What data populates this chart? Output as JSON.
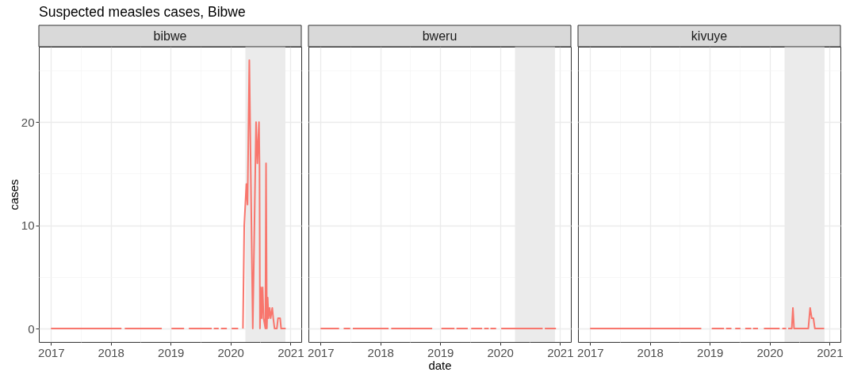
{
  "chart_data": [
    {
      "type": "line",
      "title": "Suspected measles cases, Bibwe",
      "subtitle": "bibwe",
      "ylabel": "cases",
      "x": [
        "2017-01-01",
        "2018-03-07",
        "2018-03-17",
        "2018-03-27",
        "2018-11-08",
        "2018-12-07",
        "2019-01-06",
        "2019-03-24",
        "2019-04-07",
        "2019-04-22",
        "2019-09-09",
        "2019-09-15",
        "2019-09-21",
        "2019-10-21",
        "2019-10-28",
        "2019-11-04",
        "2019-12-10",
        "2019-12-25",
        "2020-01-08",
        "2020-02-17",
        "2020-03-02",
        "2020-03-17",
        "2020-03-25",
        "2020-04-07",
        "2020-04-14",
        "2020-04-25",
        "2020-05-16",
        "2020-06-05",
        "2020-06-13",
        "2020-06-23",
        "2020-06-26",
        "2020-06-29",
        "2020-07-04",
        "2020-07-09",
        "2020-07-15",
        "2020-07-21",
        "2020-08-01",
        "2020-08-05",
        "2020-08-10",
        "2020-08-15",
        "2020-08-20",
        "2020-08-27",
        "2020-09-02",
        "2020-09-12",
        "2020-09-18",
        "2020-09-26",
        "2020-10-10",
        "2020-10-17",
        "2020-10-30",
        "2020-11-05",
        "2020-12-03"
      ],
      "series": [
        {
          "color": "#f8766d",
          "values": [
            0,
            0,
            null,
            0,
            0,
            null,
            0,
            0,
            null,
            0,
            0,
            null,
            0,
            0,
            null,
            0,
            0,
            null,
            0,
            0,
            null,
            0,
            10,
            14,
            12,
            26,
            0,
            20,
            16,
            20,
            16,
            0,
            4,
            1,
            4,
            1,
            0,
            16,
            0,
            3,
            1,
            2,
            1,
            2,
            1,
            0,
            0,
            1,
            1,
            0,
            0
          ]
        }
      ],
      "xlim": [
        "2016-10-19",
        "2021-03-08"
      ],
      "xticks": [
        "2017",
        {
          "value": "2017-07-01",
          "label": null
        },
        "2018",
        {
          "value": "2018-07-01",
          "label": null
        },
        "2019",
        {
          "value": "2019-07-01",
          "label": null
        },
        "2020",
        {
          "value": "2020-07-01",
          "label": null
        },
        "2021"
      ],
      "ylim": [
        -1.3,
        27.3
      ],
      "yticks": [
        0,
        {
          "value": 5,
          "label": null
        },
        10,
        {
          "value": 15,
          "label": null
        },
        20,
        {
          "value": 25,
          "label": null
        }
      ],
      "grid": true,
      "bands": [
        {
          "axis": "x",
          "from": "2020-04-01",
          "to": "2020-12-01",
          "color": "#ebebeb"
        }
      ]
    },
    {
      "type": "line",
      "subtitle": "bweru",
      "xlabel": "date",
      "x": [
        "2017-01-01",
        "2017-04-24",
        "2017-05-08",
        "2017-05-22",
        "2017-07-01",
        "2017-07-09",
        "2017-07-17",
        "2018-02-20",
        "2018-02-28",
        "2018-03-08",
        "2018-11-13",
        "2018-12-10",
        "2019-01-08",
        "2019-03-29",
        "2019-04-04",
        "2019-04-10",
        "2019-06-18",
        "2019-06-28",
        "2019-07-09",
        "2019-09-14",
        "2019-09-20",
        "2019-09-26",
        "2019-10-24",
        "2019-10-29",
        "2019-11-03",
        "2019-12-08",
        "2019-12-23",
        "2020-01-08",
        "2020-09-17",
        "2020-09-23",
        "2020-09-30",
        "2020-12-07"
      ],
      "series": [
        {
          "color": "#f8766d",
          "values": [
            0,
            0,
            null,
            0,
            0,
            null,
            0,
            0,
            null,
            0,
            0,
            null,
            0,
            0,
            null,
            0,
            0,
            null,
            0,
            0,
            null,
            0,
            0,
            null,
            0,
            0,
            null,
            0,
            0,
            null,
            0,
            0
          ]
        }
      ],
      "xlim": [
        "2016-10-19",
        "2021-03-08"
      ],
      "xticks": [
        "2017",
        {
          "value": "2017-07-01",
          "label": null
        },
        "2018",
        {
          "value": "2018-07-01",
          "label": null
        },
        "2019",
        {
          "value": "2019-07-01",
          "label": null
        },
        "2020",
        {
          "value": "2020-07-01",
          "label": null
        },
        "2021"
      ],
      "ylim": [
        -1.3,
        27.3
      ],
      "yticks": [
        0,
        {
          "value": 5,
          "label": null
        },
        10,
        {
          "value": 15,
          "label": null
        },
        20,
        {
          "value": 25,
          "label": null
        }
      ],
      "grid": true,
      "tick_labels": "x",
      "bands": [
        {
          "axis": "x",
          "from": "2020-04-01",
          "to": "2020-12-01",
          "color": "#ebebeb"
        }
      ]
    },
    {
      "type": "line",
      "subtitle": "kivuye",
      "x": [
        "2017-01-01",
        "2018-11-10",
        "2018-12-12",
        "2019-01-13",
        "2019-03-29",
        "2019-04-04",
        "2019-04-10",
        "2019-05-13",
        "2019-05-25",
        "2019-06-05",
        "2019-07-07",
        "2019-07-21",
        "2019-08-05",
        "2019-09-11",
        "2019-09-16",
        "2019-09-21",
        "2019-10-22",
        "2019-11-07",
        "2019-11-27",
        "2020-03-02",
        "2020-03-10",
        "2020-03-18",
        "2020-04-11",
        "2020-04-17",
        "2020-04-23",
        "2020-05-15",
        "2020-05-22",
        "2020-05-29",
        "2020-08-24",
        "2020-09-04",
        "2020-09-14",
        "2020-09-24",
        "2020-10-03",
        "2020-11-29"
      ],
      "series": [
        {
          "color": "#f8766d",
          "values": [
            0,
            0,
            null,
            0,
            0,
            null,
            0,
            0,
            null,
            0,
            0,
            null,
            0,
            0,
            null,
            0,
            0,
            null,
            0,
            0,
            null,
            0,
            0,
            null,
            0,
            0,
            2,
            0,
            0,
            2,
            1,
            1,
            0,
            0
          ]
        }
      ],
      "xlim": [
        "2016-10-19",
        "2021-03-08"
      ],
      "xticks": [
        "2017",
        {
          "value": "2017-07-01",
          "label": null
        },
        "2018",
        {
          "value": "2018-07-01",
          "label": null
        },
        "2019",
        {
          "value": "2019-07-01",
          "label": null
        },
        "2020",
        {
          "value": "2020-07-01",
          "label": null
        },
        "2021"
      ],
      "ylim": [
        -1.3,
        27.3
      ],
      "yticks": [
        0,
        {
          "value": 5,
          "label": null
        },
        10,
        {
          "value": 15,
          "label": null
        },
        20,
        {
          "value": 25,
          "label": null
        }
      ],
      "grid": true,
      "tick_labels": "x",
      "bands": [
        {
          "axis": "x",
          "from": "2020-04-01",
          "to": "2020-12-01",
          "color": "#ebebeb"
        }
      ]
    }
  ]
}
